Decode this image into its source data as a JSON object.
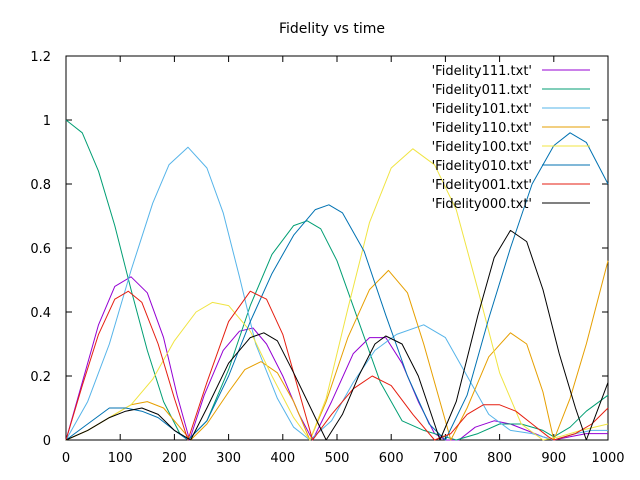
{
  "chart_data": {
    "type": "line",
    "title": "Fidelity vs time",
    "xlabel": "",
    "ylabel": "",
    "xlim": [
      0,
      1000
    ],
    "ylim": [
      0,
      1.2
    ],
    "x_ticks": [
      0,
      100,
      200,
      300,
      400,
      500,
      600,
      700,
      800,
      900,
      1000
    ],
    "y_ticks": [
      0,
      0.2,
      0.4,
      0.6,
      0.8,
      1,
      1.2
    ],
    "x_tick_labels": [
      "0",
      "100",
      "200",
      "300",
      "400",
      "500",
      "600",
      "700",
      "800",
      "900",
      "1000"
    ],
    "y_tick_labels": [
      "0",
      "0.2",
      "0.4",
      "0.6",
      "0.8",
      "1",
      "1.2"
    ],
    "grid": false,
    "legend_position": "top-right",
    "series": [
      {
        "name": "'Fidelity111.txt'",
        "color": "#9400d3",
        "points": [
          [
            0,
            0
          ],
          [
            30,
            0.18
          ],
          [
            60,
            0.36
          ],
          [
            90,
            0.48
          ],
          [
            120,
            0.51
          ],
          [
            150,
            0.46
          ],
          [
            180,
            0.32
          ],
          [
            205,
            0.14
          ],
          [
            228,
            0
          ],
          [
            255,
            0.14
          ],
          [
            290,
            0.28
          ],
          [
            320,
            0.34
          ],
          [
            345,
            0.35
          ],
          [
            370,
            0.3
          ],
          [
            400,
            0.2
          ],
          [
            430,
            0.08
          ],
          [
            455,
            0
          ],
          [
            490,
            0.12
          ],
          [
            530,
            0.27
          ],
          [
            560,
            0.32
          ],
          [
            590,
            0.32
          ],
          [
            620,
            0.24
          ],
          [
            650,
            0.12
          ],
          [
            680,
            0.02
          ],
          [
            700,
            0
          ],
          [
            725,
            0
          ],
          [
            755,
            0.04
          ],
          [
            790,
            0.06
          ],
          [
            820,
            0.05
          ],
          [
            850,
            0.03
          ],
          [
            880,
            0.01
          ],
          [
            900,
            0
          ],
          [
            930,
            0.01
          ],
          [
            960,
            0.02
          ],
          [
            1000,
            0.02
          ]
        ]
      },
      {
        "name": "'Fidelity011.txt'",
        "color": "#009e73",
        "points": [
          [
            0,
            1.0
          ],
          [
            30,
            0.96
          ],
          [
            60,
            0.84
          ],
          [
            90,
            0.67
          ],
          [
            120,
            0.47
          ],
          [
            150,
            0.28
          ],
          [
            180,
            0.12
          ],
          [
            210,
            0.02
          ],
          [
            225,
            0
          ],
          [
            260,
            0.06
          ],
          [
            300,
            0.22
          ],
          [
            340,
            0.42
          ],
          [
            380,
            0.58
          ],
          [
            420,
            0.67
          ],
          [
            445,
            0.685
          ],
          [
            470,
            0.66
          ],
          [
            500,
            0.56
          ],
          [
            540,
            0.37
          ],
          [
            580,
            0.18
          ],
          [
            620,
            0.06
          ],
          [
            660,
            0.03
          ],
          [
            700,
            0.01
          ],
          [
            720,
            0
          ],
          [
            760,
            0.02
          ],
          [
            800,
            0.05
          ],
          [
            840,
            0.05
          ],
          [
            880,
            0.03
          ],
          [
            900,
            0.01
          ],
          [
            930,
            0.04
          ],
          [
            960,
            0.09
          ],
          [
            1000,
            0.14
          ]
        ]
      },
      {
        "name": "'Fidelity101.txt'",
        "color": "#56b4e9",
        "points": [
          [
            0,
            0
          ],
          [
            40,
            0.12
          ],
          [
            80,
            0.3
          ],
          [
            120,
            0.53
          ],
          [
            160,
            0.74
          ],
          [
            190,
            0.86
          ],
          [
            225,
            0.915
          ],
          [
            260,
            0.85
          ],
          [
            290,
            0.71
          ],
          [
            320,
            0.51
          ],
          [
            350,
            0.3
          ],
          [
            390,
            0.13
          ],
          [
            420,
            0.04
          ],
          [
            450,
            0
          ],
          [
            490,
            0.06
          ],
          [
            530,
            0.18
          ],
          [
            570,
            0.28
          ],
          [
            610,
            0.33
          ],
          [
            660,
            0.36
          ],
          [
            700,
            0.32
          ],
          [
            740,
            0.2
          ],
          [
            780,
            0.08
          ],
          [
            820,
            0.03
          ],
          [
            860,
            0.02
          ],
          [
            900,
            0
          ],
          [
            940,
            0.02
          ],
          [
            970,
            0.03
          ],
          [
            1000,
            0.03
          ]
        ]
      },
      {
        "name": "'Fidelity110.txt'",
        "color": "#e69f00",
        "points": [
          [
            0,
            0
          ],
          [
            40,
            0.03
          ],
          [
            80,
            0.07
          ],
          [
            120,
            0.11
          ],
          [
            150,
            0.12
          ],
          [
            180,
            0.1
          ],
          [
            210,
            0.04
          ],
          [
            230,
            0
          ],
          [
            260,
            0.05
          ],
          [
            300,
            0.15
          ],
          [
            330,
            0.22
          ],
          [
            360,
            0.245
          ],
          [
            390,
            0.21
          ],
          [
            420,
            0.12
          ],
          [
            450,
            0
          ],
          [
            480,
            0.12
          ],
          [
            520,
            0.32
          ],
          [
            560,
            0.47
          ],
          [
            595,
            0.53
          ],
          [
            630,
            0.46
          ],
          [
            660,
            0.3
          ],
          [
            690,
            0.12
          ],
          [
            710,
            0
          ],
          [
            740,
            0.1
          ],
          [
            780,
            0.26
          ],
          [
            820,
            0.335
          ],
          [
            850,
            0.3
          ],
          [
            880,
            0.15
          ],
          [
            900,
            0
          ],
          [
            930,
            0.13
          ],
          [
            960,
            0.3
          ],
          [
            1000,
            0.56
          ]
        ]
      },
      {
        "name": "'Fidelity100.txt'",
        "color": "#f0e442",
        "points": [
          [
            0,
            0
          ],
          [
            40,
            0.03
          ],
          [
            80,
            0.07
          ],
          [
            120,
            0.11
          ],
          [
            160,
            0.19
          ],
          [
            200,
            0.31
          ],
          [
            240,
            0.4
          ],
          [
            270,
            0.43
          ],
          [
            300,
            0.42
          ],
          [
            340,
            0.34
          ],
          [
            380,
            0.2
          ],
          [
            420,
            0.07
          ],
          [
            450,
            0
          ],
          [
            480,
            0.13
          ],
          [
            520,
            0.41
          ],
          [
            560,
            0.68
          ],
          [
            600,
            0.85
          ],
          [
            640,
            0.91
          ],
          [
            680,
            0.86
          ],
          [
            720,
            0.72
          ],
          [
            760,
            0.47
          ],
          [
            800,
            0.21
          ],
          [
            840,
            0.05
          ],
          [
            880,
            0
          ],
          [
            910,
            0.01
          ],
          [
            950,
            0.03
          ],
          [
            1000,
            0.05
          ]
        ]
      },
      {
        "name": "'Fidelity010.txt'",
        "color": "#0072b2",
        "points": [
          [
            0,
            0
          ],
          [
            40,
            0.05
          ],
          [
            80,
            0.1
          ],
          [
            110,
            0.1
          ],
          [
            140,
            0.09
          ],
          [
            170,
            0.07
          ],
          [
            200,
            0.03
          ],
          [
            225,
            0
          ],
          [
            260,
            0.06
          ],
          [
            300,
            0.2
          ],
          [
            340,
            0.37
          ],
          [
            380,
            0.52
          ],
          [
            420,
            0.64
          ],
          [
            460,
            0.72
          ],
          [
            485,
            0.735
          ],
          [
            510,
            0.71
          ],
          [
            550,
            0.59
          ],
          [
            590,
            0.39
          ],
          [
            630,
            0.2
          ],
          [
            670,
            0.05
          ],
          [
            700,
            0
          ],
          [
            740,
            0.14
          ],
          [
            780,
            0.38
          ],
          [
            820,
            0.6
          ],
          [
            860,
            0.8
          ],
          [
            900,
            0.92
          ],
          [
            930,
            0.96
          ],
          [
            960,
            0.93
          ],
          [
            1000,
            0.8
          ]
        ]
      },
      {
        "name": "'Fidelity001.txt'",
        "color": "#e51e10",
        "points": [
          [
            0,
            0
          ],
          [
            30,
            0.17
          ],
          [
            60,
            0.33
          ],
          [
            90,
            0.44
          ],
          [
            115,
            0.465
          ],
          [
            140,
            0.43
          ],
          [
            170,
            0.3
          ],
          [
            200,
            0.13
          ],
          [
            225,
            0
          ],
          [
            260,
            0.18
          ],
          [
            300,
            0.37
          ],
          [
            340,
            0.465
          ],
          [
            370,
            0.44
          ],
          [
            400,
            0.33
          ],
          [
            430,
            0.15
          ],
          [
            455,
            0
          ],
          [
            490,
            0.08
          ],
          [
            530,
            0.16
          ],
          [
            565,
            0.2
          ],
          [
            600,
            0.17
          ],
          [
            640,
            0.08
          ],
          [
            680,
            0
          ],
          [
            710,
            0.02
          ],
          [
            740,
            0.08
          ],
          [
            770,
            0.11
          ],
          [
            800,
            0.11
          ],
          [
            830,
            0.09
          ],
          [
            860,
            0.05
          ],
          [
            890,
            0.01
          ],
          [
            900,
            0
          ],
          [
            940,
            0.02
          ],
          [
            970,
            0.05
          ],
          [
            1000,
            0.1
          ]
        ]
      },
      {
        "name": "'Fidelity000.txt'",
        "color": "#000000",
        "points": [
          [
            0,
            0
          ],
          [
            40,
            0.03
          ],
          [
            80,
            0.07
          ],
          [
            110,
            0.09
          ],
          [
            140,
            0.1
          ],
          [
            170,
            0.08
          ],
          [
            200,
            0.03
          ],
          [
            230,
            0
          ],
          [
            260,
            0.1
          ],
          [
            300,
            0.24
          ],
          [
            340,
            0.32
          ],
          [
            365,
            0.335
          ],
          [
            390,
            0.31
          ],
          [
            420,
            0.21
          ],
          [
            460,
            0.07
          ],
          [
            480,
            0
          ],
          [
            510,
            0.08
          ],
          [
            540,
            0.2
          ],
          [
            570,
            0.3
          ],
          [
            590,
            0.325
          ],
          [
            620,
            0.3
          ],
          [
            650,
            0.2
          ],
          [
            680,
            0.05
          ],
          [
            690,
            0
          ],
          [
            720,
            0.12
          ],
          [
            760,
            0.39
          ],
          [
            790,
            0.57
          ],
          [
            820,
            0.655
          ],
          [
            850,
            0.62
          ],
          [
            880,
            0.47
          ],
          [
            910,
            0.27
          ],
          [
            940,
            0.1
          ],
          [
            960,
            0
          ],
          [
            980,
            0.09
          ],
          [
            1000,
            0.18
          ]
        ]
      }
    ]
  }
}
